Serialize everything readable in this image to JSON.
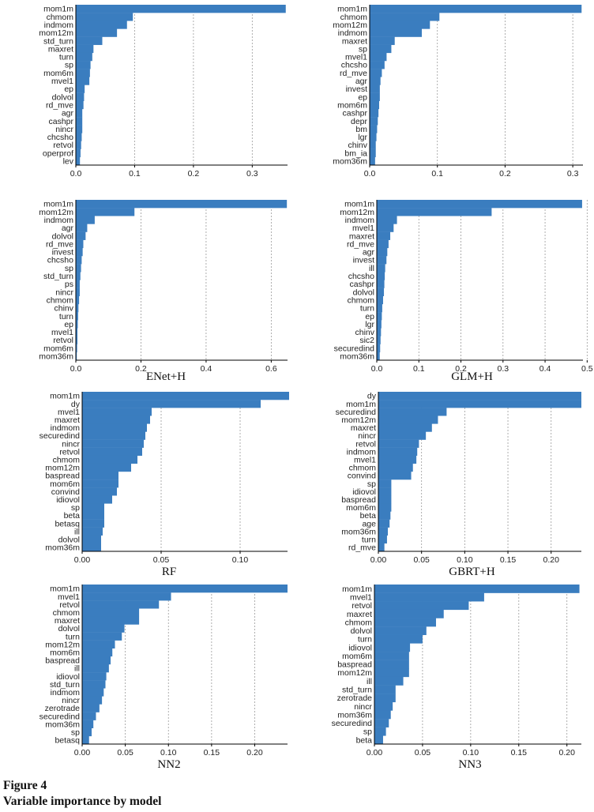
{
  "figure": {
    "label": "Figure 4",
    "caption": "Variable importance by model"
  },
  "colors": {
    "bar": "#3a7dbf",
    "grid": "#9a9a9a",
    "axis": "#000000",
    "text": "#222222"
  },
  "chart_data": [
    {
      "type": "bar",
      "orientation": "horizontal",
      "title": "",
      "xlim": [
        0,
        0.36
      ],
      "xticks": [
        0.0,
        0.1,
        0.2,
        0.3
      ],
      "xtick_labels": [
        "0.0",
        "0.1",
        "0.2",
        "0.3"
      ],
      "categories": [
        "mom1m",
        "chmom",
        "indmom",
        "mom12m",
        "std_turn",
        "maxret",
        "turn",
        "sp",
        "mom6m",
        "mvel1",
        "ep",
        "dolvol",
        "rd_mve",
        "agr",
        "cashpr",
        "nincr",
        "chcsho",
        "retvol",
        "operprof",
        "lev"
      ],
      "values": [
        0.357,
        0.097,
        0.087,
        0.07,
        0.045,
        0.03,
        0.028,
        0.025,
        0.024,
        0.023,
        0.015,
        0.014,
        0.013,
        0.011,
        0.011,
        0.011,
        0.01,
        0.009,
        0.008,
        0.007
      ]
    },
    {
      "type": "bar",
      "orientation": "horizontal",
      "title": "",
      "xlim": [
        0,
        0.315
      ],
      "xticks": [
        0.0,
        0.1,
        0.2,
        0.3
      ],
      "xtick_labels": [
        "0.0",
        "0.1",
        "0.2",
        "0.3"
      ],
      "categories": [
        "mom1m",
        "chmom",
        "mom12m",
        "indmom",
        "maxret",
        "sp",
        "mvel1",
        "chcsho",
        "rd_mve",
        "agr",
        "invest",
        "ep",
        "mom6m",
        "cashpr",
        "depr",
        "bm",
        "lgr",
        "chinv",
        "bm_ia",
        "mom36m"
      ],
      "values": [
        0.313,
        0.103,
        0.089,
        0.077,
        0.037,
        0.032,
        0.025,
        0.022,
        0.018,
        0.016,
        0.015,
        0.015,
        0.014,
        0.013,
        0.012,
        0.011,
        0.01,
        0.009,
        0.009,
        0.008
      ]
    },
    {
      "type": "bar",
      "orientation": "horizontal",
      "title": "ENet+H",
      "xlim": [
        0,
        0.65
      ],
      "xticks": [
        0.0,
        0.2,
        0.4,
        0.6
      ],
      "xtick_labels": [
        "0.0",
        "0.2",
        "0.4",
        "0.6"
      ],
      "categories": [
        "mom1m",
        "mom12m",
        "indmom",
        "agr",
        "dolvol",
        "rd_mve",
        "invest",
        "chcsho",
        "sp",
        "std_turn",
        "ps",
        "nincr",
        "chmom",
        "chinv",
        "turn",
        "ep",
        "mvel1",
        "retvol",
        "mom6m",
        "mom36m"
      ],
      "values": [
        0.648,
        0.18,
        0.058,
        0.035,
        0.03,
        0.023,
        0.021,
        0.018,
        0.016,
        0.014,
        0.012,
        0.012,
        0.01,
        0.008,
        0.007,
        0.006,
        0.005,
        0.005,
        0.004,
        0.003
      ]
    },
    {
      "type": "bar",
      "orientation": "horizontal",
      "title": "GLM+H",
      "xlim": [
        0,
        0.49
      ],
      "xticks": [
        0.0,
        0.1,
        0.2,
        0.3,
        0.4,
        0.5
      ],
      "xtick_labels": [
        "0.0",
        "0.1",
        "0.2",
        "0.3",
        "0.4",
        "0.5"
      ],
      "categories": [
        "mom1m",
        "mom12m",
        "indmom",
        "mvel1",
        "maxret",
        "rd_mve",
        "agr",
        "invest",
        "ill",
        "chcsho",
        "cashpr",
        "dolvol",
        "chmom",
        "turn",
        "ep",
        "lgr",
        "chinv",
        "sic2",
        "securedind",
        "mom36m"
      ],
      "values": [
        0.488,
        0.273,
        0.048,
        0.04,
        0.032,
        0.028,
        0.025,
        0.023,
        0.02,
        0.019,
        0.018,
        0.017,
        0.015,
        0.013,
        0.012,
        0.011,
        0.01,
        0.009,
        0.008,
        0.007
      ]
    },
    {
      "type": "bar",
      "orientation": "horizontal",
      "title": "RF",
      "xlim": [
        0,
        0.13
      ],
      "xticks": [
        0.0,
        0.05,
        0.1
      ],
      "xtick_labels": [
        "0.00",
        "0.05",
        "0.10"
      ],
      "categories": [
        "mom1m",
        "dy",
        "mvel1",
        "maxret",
        "indmom",
        "securedind",
        "nincr",
        "retvol",
        "chmom",
        "mom12m",
        "baspread",
        "mom6m",
        "convind",
        "idiovol",
        "sp",
        "beta",
        "betasq",
        "ill",
        "dolvol",
        "mom36m"
      ],
      "values": [
        0.131,
        0.113,
        0.044,
        0.043,
        0.041,
        0.04,
        0.039,
        0.038,
        0.035,
        0.031,
        0.023,
        0.023,
        0.022,
        0.019,
        0.014,
        0.014,
        0.014,
        0.013,
        0.012,
        0.012
      ]
    },
    {
      "type": "bar",
      "orientation": "horizontal",
      "title": "GBRT+H",
      "xlim": [
        0,
        0.235
      ],
      "xticks": [
        0.0,
        0.05,
        0.1,
        0.15,
        0.2
      ],
      "xtick_labels": [
        "0.00",
        "0.05",
        "0.10",
        "0.15",
        "0.20"
      ],
      "categories": [
        "dy",
        "mom1m",
        "securedind",
        "mom12m",
        "maxret",
        "nincr",
        "retvol",
        "indmom",
        "mvel1",
        "chmom",
        "convind",
        "sp",
        "idiovol",
        "baspread",
        "mom6m",
        "beta",
        "age",
        "mom36m",
        "turn",
        "rd_mve"
      ],
      "values": [
        0.235,
        0.235,
        0.079,
        0.069,
        0.062,
        0.055,
        0.047,
        0.045,
        0.044,
        0.04,
        0.038,
        0.015,
        0.015,
        0.015,
        0.015,
        0.014,
        0.013,
        0.011,
        0.01,
        0.007
      ]
    },
    {
      "type": "bar",
      "orientation": "horizontal",
      "title": "NN2",
      "xlim": [
        0,
        0.238
      ],
      "xticks": [
        0.0,
        0.05,
        0.1,
        0.15,
        0.2
      ],
      "xtick_labels": [
        "0.00",
        "0.05",
        "0.10",
        "0.15",
        "0.20"
      ],
      "categories": [
        "mom1m",
        "mvel1",
        "retvol",
        "chmom",
        "maxret",
        "dolvol",
        "turn",
        "mom12m",
        "mom6m",
        "baspread",
        "ill",
        "idiovol",
        "std_turn",
        "indmom",
        "nincr",
        "zerotrade",
        "securedind",
        "mom36m",
        "sp",
        "betasq"
      ],
      "values": [
        0.238,
        0.103,
        0.089,
        0.066,
        0.066,
        0.049,
        0.046,
        0.038,
        0.035,
        0.033,
        0.031,
        0.028,
        0.027,
        0.025,
        0.023,
        0.02,
        0.016,
        0.013,
        0.011,
        0.008
      ]
    },
    {
      "type": "bar",
      "orientation": "horizontal",
      "title": "NN3",
      "xlim": [
        0,
        0.215
      ],
      "xticks": [
        0.0,
        0.05,
        0.1,
        0.15,
        0.2
      ],
      "xtick_labels": [
        "0.00",
        "0.05",
        "0.10",
        "0.15",
        "0.20"
      ],
      "categories": [
        "mom1m",
        "mvel1",
        "retvol",
        "maxret",
        "chmom",
        "dolvol",
        "turn",
        "idiovol",
        "mom6m",
        "baspread",
        "mom12m",
        "ill",
        "std_turn",
        "zerotrade",
        "nincr",
        "mom36m",
        "securedind",
        "sp",
        "beta"
      ],
      "values": [
        0.213,
        0.114,
        0.098,
        0.072,
        0.064,
        0.054,
        0.05,
        0.037,
        0.036,
        0.036,
        0.036,
        0.03,
        0.022,
        0.022,
        0.019,
        0.017,
        0.015,
        0.012,
        0.009
      ]
    }
  ]
}
